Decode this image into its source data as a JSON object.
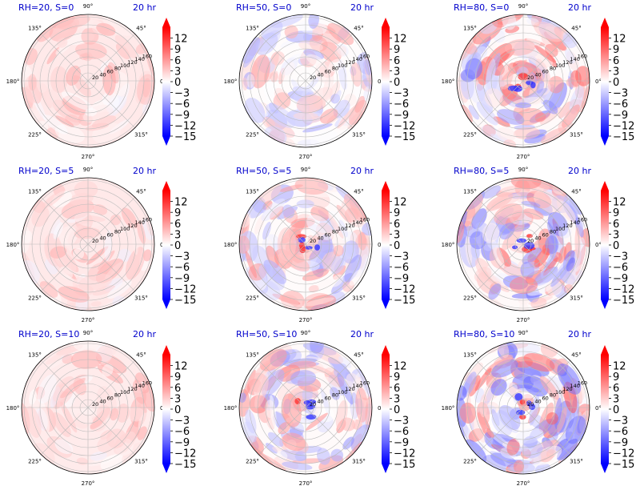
{
  "figure": {
    "time_label": "20 hr"
  },
  "colorbar": {
    "ticks": [
      "12",
      "9",
      "6",
      "3",
      "0",
      "−3",
      "−6",
      "−9",
      "−12",
      "−15"
    ],
    "tick_values": [
      12,
      9,
      6,
      3,
      0,
      -3,
      -6,
      -9,
      -12,
      -15
    ],
    "range": [
      -15,
      15
    ],
    "colormap": "bwr",
    "extend": "both"
  },
  "colors": {
    "title": "#0000cc",
    "negative": "#0000ff",
    "zero": "#ffffff",
    "positive": "#ff0000",
    "grid": "#bbbbbb"
  },
  "chart_data": [
    {
      "type": "heatmap",
      "projection": "polar",
      "title": "RH=20, S=0",
      "time": "20 hr",
      "theta_ticks": [
        "90°",
        "45°",
        "0°",
        "315°",
        "270°",
        "225°",
        "180°",
        "135°"
      ],
      "r_ticks": [
        "20",
        "40",
        "60",
        "80",
        "100",
        "120",
        "140",
        "160"
      ],
      "clim": [
        -15,
        15
      ],
      "field_character": "weak, mostly positive"
    },
    {
      "type": "heatmap",
      "projection": "polar",
      "title": "RH=50, S=0",
      "time": "20 hr",
      "theta_ticks": [
        "90°",
        "45°",
        "0°",
        "315°",
        "270°",
        "225°",
        "180°",
        "135°"
      ],
      "r_ticks": [
        "20",
        "40",
        "60",
        "80",
        "100",
        "120",
        "140",
        "160"
      ],
      "clim": [
        -15,
        15
      ],
      "field_character": "mixed positive and negative"
    },
    {
      "type": "heatmap",
      "projection": "polar",
      "title": "RH=80, S=0",
      "time": "20 hr",
      "theta_ticks": [
        "90°",
        "45°",
        "0°",
        "315°",
        "270°",
        "225°",
        "180°",
        "135°"
      ],
      "r_ticks": [
        "20",
        "40",
        "60",
        "80",
        "100",
        "120",
        "140",
        "160"
      ],
      "clim": [
        -15,
        15
      ],
      "field_character": "strong mixed"
    },
    {
      "type": "heatmap",
      "projection": "polar",
      "title": "RH=20, S=5",
      "time": "20 hr",
      "theta_ticks": [
        "90°",
        "45°",
        "0°",
        "315°",
        "270°",
        "225°",
        "180°",
        "135°"
      ],
      "r_ticks": [
        "20",
        "40",
        "60",
        "80",
        "100",
        "120",
        "140",
        "160"
      ],
      "clim": [
        -15,
        15
      ],
      "field_character": "weak, mostly positive"
    },
    {
      "type": "heatmap",
      "projection": "polar",
      "title": "RH=50, S=5",
      "time": "20 hr",
      "theta_ticks": [
        "90°",
        "45°",
        "0°",
        "315°",
        "270°",
        "225°",
        "180°",
        "135°"
      ],
      "r_ticks": [
        "20",
        "40",
        "60",
        "80",
        "100",
        "120",
        "140",
        "160"
      ],
      "clim": [
        -15,
        15
      ],
      "field_character": "mixed, negative band toward 45°"
    },
    {
      "type": "heatmap",
      "projection": "polar",
      "title": "RH=80, S=5",
      "time": "20 hr",
      "theta_ticks": [
        "90°",
        "45°",
        "0°",
        "315°",
        "270°",
        "225°",
        "180°",
        "135°"
      ],
      "r_ticks": [
        "20",
        "40",
        "60",
        "80",
        "100",
        "120",
        "140",
        "160"
      ],
      "clim": [
        -15,
        15
      ],
      "field_character": "strong mixed, dipoles near center"
    },
    {
      "type": "heatmap",
      "projection": "polar",
      "title": "RH=20, S=10",
      "time": "20 hr",
      "theta_ticks": [
        "90°",
        "45°",
        "0°",
        "315°",
        "270°",
        "225°",
        "180°",
        "135°"
      ],
      "r_ticks": [
        "20",
        "40",
        "60",
        "80",
        "100",
        "120",
        "140",
        "160"
      ],
      "clim": [
        -15,
        15
      ],
      "field_character": "weak, mostly positive"
    },
    {
      "type": "heatmap",
      "projection": "polar",
      "title": "RH=50, S=10",
      "time": "20 hr",
      "theta_ticks": [
        "90°",
        "45°",
        "0°",
        "315°",
        "270°",
        "225°",
        "180°",
        "135°"
      ],
      "r_ticks": [
        "20",
        "40",
        "60",
        "80",
        "100",
        "120",
        "140",
        "160"
      ],
      "clim": [
        -15,
        15
      ],
      "field_character": "mixed, strong dipole near center"
    },
    {
      "type": "heatmap",
      "projection": "polar",
      "title": "RH=80, S=10",
      "time": "20 hr",
      "theta_ticks": [
        "90°",
        "45°",
        "0°",
        "315°",
        "270°",
        "225°",
        "180°",
        "135°"
      ],
      "r_ticks": [
        "20",
        "40",
        "60",
        "80",
        "100",
        "120",
        "140",
        "160"
      ],
      "clim": [
        -15,
        15
      ],
      "field_character": "strong mixed, dipole near center"
    }
  ]
}
